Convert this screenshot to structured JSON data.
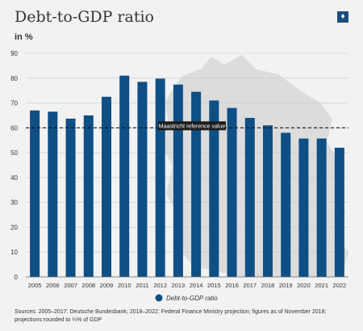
{
  "header": {
    "title": "Debt-to-GDP ratio",
    "unit": "in %",
    "logo_icon": "federal-eagle-icon"
  },
  "chart_data": {
    "type": "bar",
    "categories": [
      "2005",
      "2006",
      "2007",
      "2008",
      "2009",
      "2010",
      "2011",
      "2012",
      "2013",
      "2014",
      "2015",
      "2016",
      "2017",
      "2018",
      "2019",
      "2020",
      "2021",
      "2022"
    ],
    "series": [
      {
        "name": "Debt-to-GDP ratio",
        "color": "#0e4f86",
        "values": [
          67,
          66.5,
          63.7,
          65,
          72.5,
          81,
          78.5,
          79.8,
          77.4,
          74.5,
          71,
          68,
          64,
          61,
          58,
          55.7,
          55.7,
          52
        ]
      }
    ],
    "ylim": [
      0,
      90
    ],
    "yticks": [
      "0",
      "10",
      "20",
      "30",
      "40",
      "50",
      "60",
      "70",
      "80",
      "90"
    ],
    "reference": {
      "value": 60,
      "label": "Maastricht reference value"
    },
    "legend": "bottom-center",
    "grid": true
  },
  "footer": {
    "source": "Sources: 2005–2017: Deutsche Bundesbank; 2018–2022: Federal Finance Ministry projection; figures as of November 2018; projections rounded to ¼% of GDP"
  }
}
